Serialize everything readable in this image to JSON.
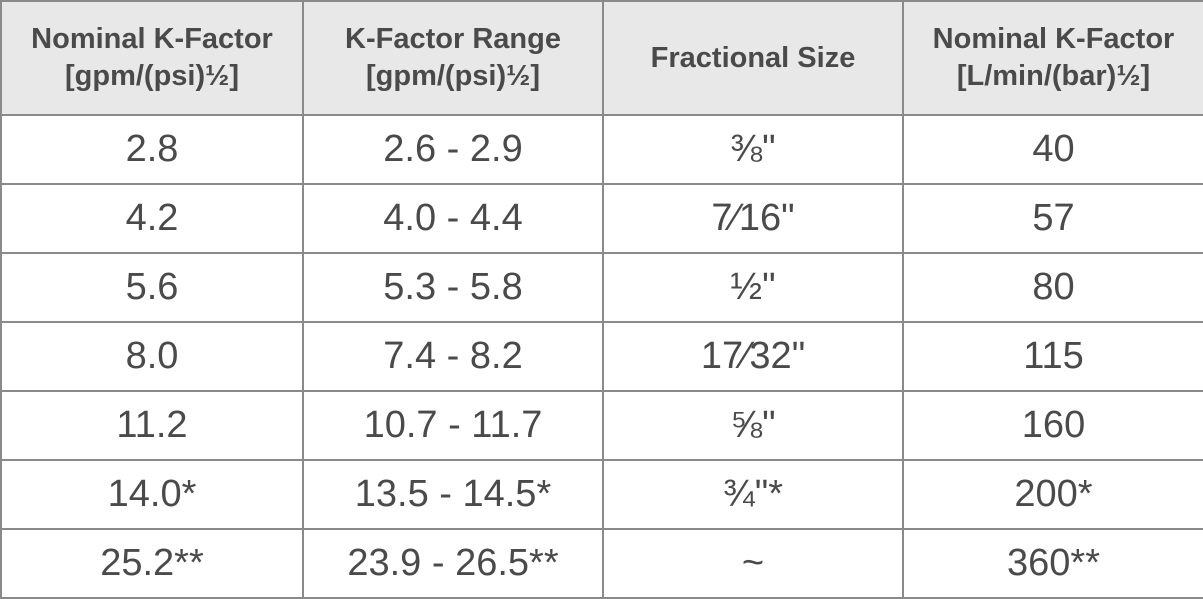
{
  "table": {
    "headers": [
      {
        "line1": "Nominal K-Factor",
        "line2": "[gpm/(psi)½]"
      },
      {
        "line1": "K-Factor Range",
        "line2": "[gpm/(psi)½]"
      },
      {
        "line1": "Fractional Size",
        "line2": ""
      },
      {
        "line1": "Nominal K-Factor",
        "line2": "[L/min/(bar)½]"
      }
    ],
    "rows": [
      [
        "2.8",
        "2.6 - 2.9",
        "⅜\"",
        "40"
      ],
      [
        "4.2",
        "4.0 - 4.4",
        "7⁄16\"",
        "57"
      ],
      [
        "5.6",
        "5.3 - 5.8",
        "½\"",
        "80"
      ],
      [
        "8.0",
        "7.4 - 8.2",
        "17⁄32\"",
        "115"
      ],
      [
        "11.2",
        "10.7 - 11.7",
        "⅝\"",
        "160"
      ],
      [
        "14.0*",
        "13.5 - 14.5*",
        "¾\"*",
        "200*"
      ],
      [
        "25.2**",
        "23.9 - 26.5**",
        "~",
        "360**"
      ]
    ]
  }
}
